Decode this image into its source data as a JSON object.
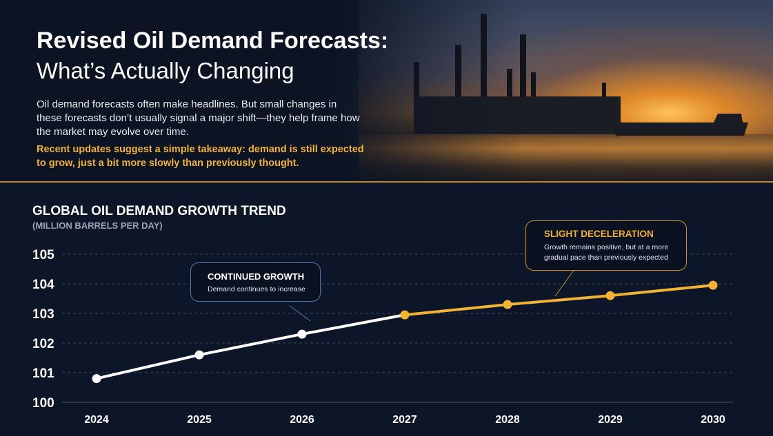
{
  "header": {
    "title_line1": "Revised Oil Demand Forecasts:",
    "title_line2": "What’s Actually Changing",
    "intro": "Oil demand forecasts often make headlines. But small changes in these forecasts don’t usually signal a major shift—they help frame how the market may evolve over time.",
    "takeaway": "Recent updates suggest a simple takeaway: demand is still expected to grow, just a bit more slowly than previously thought."
  },
  "annotations": {
    "growth": {
      "title": "CONTINUED GROWTH",
      "body": "Demand continues to increase"
    },
    "decel": {
      "title": "SLIGHT DECELERATION",
      "body": "Growth remains positive, but at a more gradual pace than previously expected"
    }
  },
  "colors": {
    "background": "#0d1628",
    "history_line": "#ffffff",
    "forecast_line": "#f2b233",
    "accent": "#f2b233"
  },
  "chart_data": {
    "type": "line",
    "title": "GLOBAL OIL DEMAND GROWTH TREND",
    "subtitle": "(MILLION BARRELS PER DAY)",
    "categories": [
      "2024",
      "2025",
      "2026",
      "2027",
      "2028",
      "2029",
      "2030"
    ],
    "values": [
      100.8,
      101.6,
      102.3,
      102.95,
      103.3,
      103.6,
      103.95
    ],
    "segments": [
      {
        "from": "2024",
        "to": "2027",
        "color": "#ffffff"
      },
      {
        "from": "2027",
        "to": "2030",
        "color": "#f2b233"
      }
    ],
    "ylim": [
      100,
      105
    ],
    "yticks": [
      100,
      101,
      102,
      103,
      104,
      105
    ],
    "grid": true,
    "legend": "none"
  }
}
